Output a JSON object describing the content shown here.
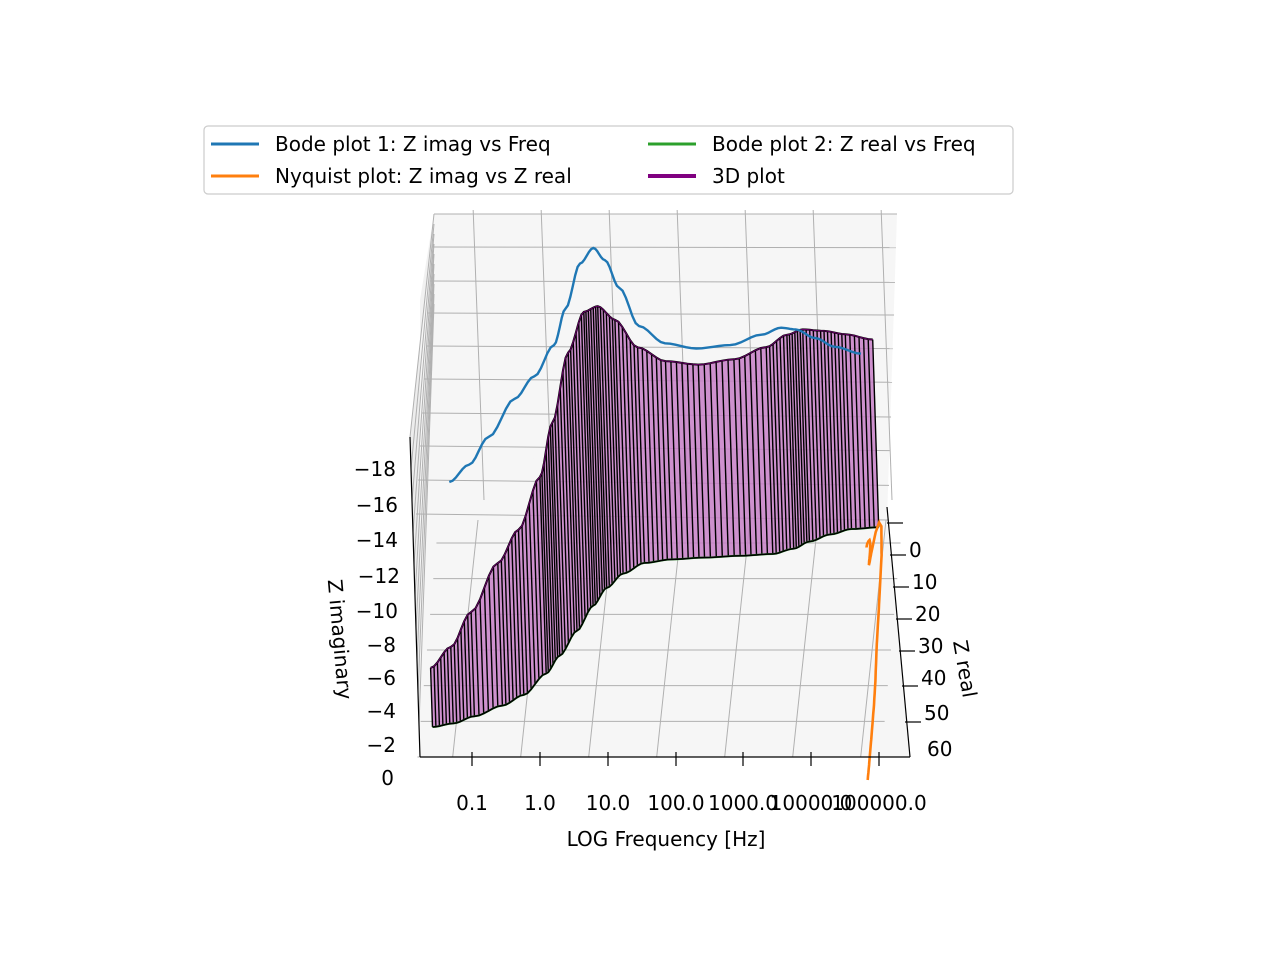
{
  "chart_data": {
    "type": "line",
    "projection": "3d",
    "title": "",
    "xlabel": "LOG Frequency [Hz]",
    "ylabel": "Z real",
    "zlabel": "Z imaginary",
    "x_scale": "log",
    "x_ticks": [
      "0.1",
      "1.0",
      "10.0",
      "100.0",
      "1000.0",
      "10000.0",
      "100000.0"
    ],
    "y_ticks": [
      "0",
      "10",
      "20",
      "30",
      "40",
      "50",
      "60"
    ],
    "z_ticks": [
      "0",
      "−2",
      "−4",
      "−6",
      "−8",
      "−10",
      "−12",
      "−14",
      "−16",
      "−18"
    ],
    "xlim": [
      0.02,
      300000
    ],
    "ylim": [
      -3,
      62
    ],
    "zlim": [
      0,
      -19
    ],
    "grid": true,
    "legend_position": "top",
    "legend": [
      {
        "label": "Bode plot 1: Z imag vs Freq",
        "color": "#1f77b4"
      },
      {
        "label": "Nyquist plot: Z imag vs Z real",
        "color": "#ff7f0e"
      },
      {
        "label": "Bode plot 2: Z real vs Freq",
        "color": "#2ca02c"
      },
      {
        "label": "3D plot",
        "color": "#800080"
      }
    ],
    "colors": {
      "bode_imag": "#1f77b4",
      "nyquist": "#ff7f0e",
      "bode_real": "#2ca02c",
      "surface_fill": "#c77fc7",
      "surface_edge": "#000000"
    },
    "series": [
      {
        "name": "3D plot",
        "x": [
          0.05,
          0.1,
          0.2,
          0.5,
          1,
          2,
          3,
          5,
          8,
          12,
          20,
          40,
          100,
          300,
          1000,
          3000,
          6000,
          10000,
          20000,
          40000,
          100000
        ],
        "z_real": [
          58,
          57,
          55,
          52,
          49,
          43,
          38,
          31,
          24,
          19,
          15,
          12,
          11,
          10.5,
          10,
          9.5,
          8,
          6,
          4,
          2.5,
          2
        ],
        "z_imag": [
          -4.6,
          -5.6,
          -7.2,
          -9.4,
          -10.7,
          -12.5,
          -14.6,
          -17.2,
          -18.1,
          -17.4,
          -15.8,
          -13.6,
          -12.6,
          -12.3,
          -12.5,
          -13.1,
          -13.5,
          -13.4,
          -12.9,
          -12.4,
          -12.0
        ]
      }
    ]
  }
}
